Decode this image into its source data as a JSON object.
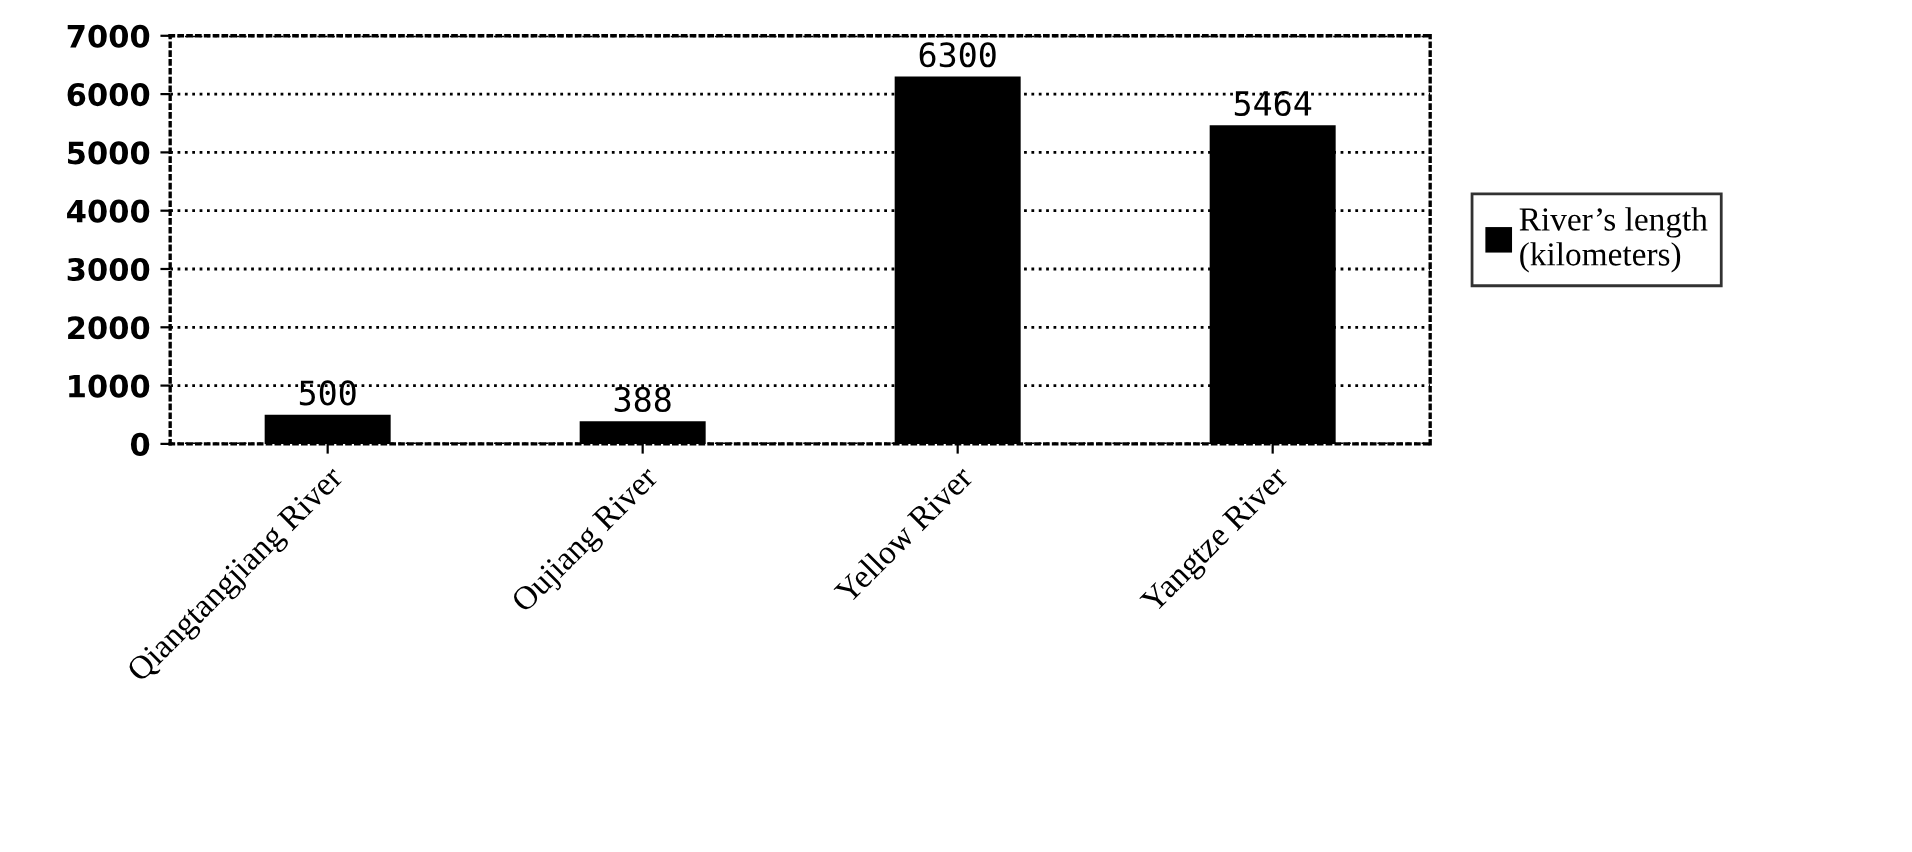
{
  "chart_data": {
    "type": "bar",
    "categories": [
      "Qiangtangjiang River",
      "Oujiang River",
      "Yellow River",
      "Yangtze River"
    ],
    "series": [
      {
        "name": "River’s length\n(kilometers)",
        "color": "#000000",
        "values": [
          500,
          388,
          6300,
          5464
        ]
      }
    ],
    "ylim": [
      0,
      7000
    ],
    "yticks": [
      0,
      1000,
      2000,
      3000,
      4000,
      5000,
      6000,
      7000
    ],
    "grid": "y",
    "legend": "right",
    "data_labels": true
  }
}
